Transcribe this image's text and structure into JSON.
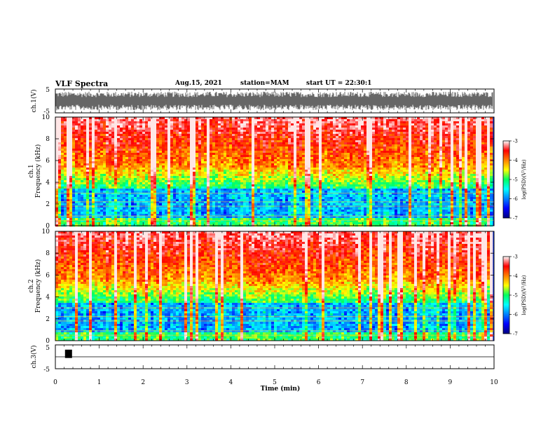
{
  "header": {
    "title": "VLF Spectra",
    "date": "Aug.15, 2021",
    "station": "station=MAM",
    "start": "start UT = 22:30:1"
  },
  "chart_data": [
    {
      "type": "line",
      "panel": "ch1 waveform",
      "ylabel": "ch.1(V)",
      "ylim": [
        -5,
        5
      ],
      "yticks": [
        "5",
        "-5"
      ],
      "x_range_min": [
        0,
        10
      ],
      "description_values": "dense broadband noise, amplitude roughly between -4 and +4 V"
    },
    {
      "type": "heatmap",
      "panel": "ch1 spectrogram",
      "ylabel_top": "ch.1",
      "ylabel": "Frequency (kHz)",
      "ylim": [
        0,
        10
      ],
      "yticks": [
        "0",
        "2",
        "4",
        "6",
        "8",
        "10"
      ],
      "x_range_min": [
        0,
        10
      ],
      "colorbar": {
        "label": "log(PSD)(V²/Hz)",
        "range": [
          -7,
          -3
        ],
        "ticks": [
          "-3",
          "-4",
          "-5",
          "-6",
          "-7"
        ]
      }
    },
    {
      "type": "heatmap",
      "panel": "ch2 spectrogram",
      "ylabel_top": "ch.2",
      "ylabel": "Frequency (kHz)",
      "ylim": [
        0,
        10
      ],
      "yticks": [
        "0",
        "2",
        "4",
        "6",
        "8",
        "10"
      ],
      "x_range_min": [
        0,
        10
      ],
      "colorbar": {
        "label": "log(PSD)(V²/Hz)",
        "range": [
          -7,
          -3
        ],
        "ticks": [
          "-3",
          "-4",
          "-5",
          "-6",
          "-7"
        ]
      }
    },
    {
      "type": "line",
      "panel": "ch3 waveform",
      "ylabel": "ch.3(V)",
      "ylim": [
        -5,
        5
      ],
      "yticks": [
        "5",
        "-5"
      ],
      "baseline_value": 0,
      "pulse": {
        "x_start_min": 0.22,
        "x_end_min": 0.38,
        "y_top": 3,
        "y_bottom": -0.5
      }
    }
  ],
  "xaxis": {
    "label": "Time (min)",
    "range": [
      0,
      10
    ],
    "ticks": [
      "0",
      "1",
      "2",
      "3",
      "4",
      "5",
      "6",
      "7",
      "8",
      "9",
      "10"
    ]
  },
  "colors": {
    "low": "#00007f",
    "mid_low": "#0080ff",
    "mid": "#00ff80",
    "mid_high": "#ffff00",
    "high": "#ff0000"
  }
}
